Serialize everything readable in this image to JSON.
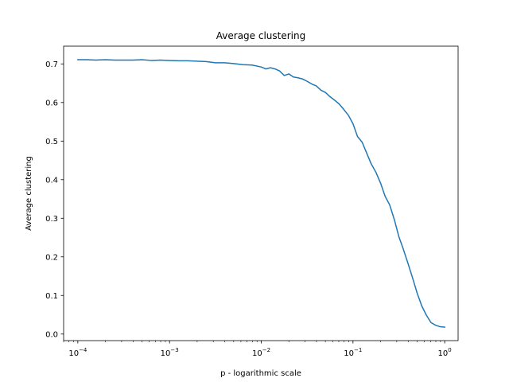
{
  "chart_data": {
    "type": "line",
    "title": "Average clustering",
    "xlabel": "p - logarithmic scale",
    "ylabel": "Average clustering",
    "xscale": "log",
    "xlim": [
      7e-05,
      1.4
    ],
    "ylim": [
      -0.017,
      0.746
    ],
    "xticks": [
      {
        "value": 0.0001,
        "base": "10",
        "exp": "−4"
      },
      {
        "value": 0.001,
        "base": "10",
        "exp": "−3"
      },
      {
        "value": 0.01,
        "base": "10",
        "exp": "−2"
      },
      {
        "value": 0.1,
        "base": "10",
        "exp": "−1"
      },
      {
        "value": 1,
        "base": "10",
        "exp": "0"
      }
    ],
    "yticks": [
      {
        "value": 0.0,
        "label": "0.0"
      },
      {
        "value": 0.1,
        "label": "0.1"
      },
      {
        "value": 0.2,
        "label": "0.2"
      },
      {
        "value": 0.3,
        "label": "0.3"
      },
      {
        "value": 0.4,
        "label": "0.4"
      },
      {
        "value": 0.5,
        "label": "0.5"
      },
      {
        "value": 0.6,
        "label": "0.6"
      },
      {
        "value": 0.7,
        "label": "0.7"
      }
    ],
    "grid": false,
    "legend": "none",
    "series": [
      {
        "color": "#1f77b4",
        "points": [
          [
            0.0001,
            0.711
          ],
          [
            0.000126,
            0.711
          ],
          [
            0.000158,
            0.71
          ],
          [
            0.0002,
            0.711
          ],
          [
            0.000251,
            0.71
          ],
          [
            0.000316,
            0.71
          ],
          [
            0.000398,
            0.71
          ],
          [
            0.0005,
            0.711
          ],
          [
            0.00063,
            0.709
          ],
          [
            0.000794,
            0.71
          ],
          [
            0.001,
            0.709
          ],
          [
            0.00126,
            0.708
          ],
          [
            0.00158,
            0.708
          ],
          [
            0.002,
            0.707
          ],
          [
            0.00251,
            0.706
          ],
          [
            0.00316,
            0.703
          ],
          [
            0.00398,
            0.703
          ],
          [
            0.005,
            0.701
          ],
          [
            0.0063,
            0.698
          ],
          [
            0.00794,
            0.697
          ],
          [
            0.01,
            0.692
          ],
          [
            0.0112,
            0.687
          ],
          [
            0.0126,
            0.69
          ],
          [
            0.0141,
            0.687
          ],
          [
            0.0158,
            0.682
          ],
          [
            0.0178,
            0.67
          ],
          [
            0.02,
            0.674
          ],
          [
            0.0224,
            0.666
          ],
          [
            0.0251,
            0.664
          ],
          [
            0.0282,
            0.661
          ],
          [
            0.0316,
            0.655
          ],
          [
            0.0355,
            0.648
          ],
          [
            0.0398,
            0.643
          ],
          [
            0.0447,
            0.632
          ],
          [
            0.0501,
            0.626
          ],
          [
            0.0562,
            0.615
          ],
          [
            0.0631,
            0.606
          ],
          [
            0.0708,
            0.596
          ],
          [
            0.0794,
            0.582
          ],
          [
            0.0891,
            0.567
          ],
          [
            0.1,
            0.545
          ],
          [
            0.112,
            0.512
          ],
          [
            0.126,
            0.497
          ],
          [
            0.141,
            0.469
          ],
          [
            0.158,
            0.441
          ],
          [
            0.178,
            0.419
          ],
          [
            0.2,
            0.391
          ],
          [
            0.224,
            0.357
          ],
          [
            0.251,
            0.335
          ],
          [
            0.282,
            0.297
          ],
          [
            0.316,
            0.253
          ],
          [
            0.355,
            0.219
          ],
          [
            0.398,
            0.183
          ],
          [
            0.447,
            0.145
          ],
          [
            0.501,
            0.106
          ],
          [
            0.562,
            0.073
          ],
          [
            0.631,
            0.049
          ],
          [
            0.708,
            0.03
          ],
          [
            0.794,
            0.023
          ],
          [
            0.891,
            0.019
          ],
          [
            1.0,
            0.018
          ]
        ]
      }
    ]
  }
}
